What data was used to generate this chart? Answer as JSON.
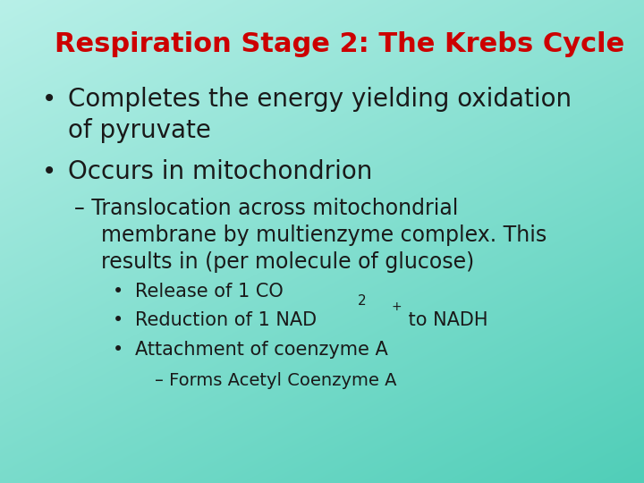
{
  "title": "Respiration Stage 2: The Krebs Cycle",
  "title_color": "#cc0000",
  "title_fontsize": 22,
  "bg_color_tl": "#b0f0e4",
  "bg_color_br": "#60d8c0",
  "text_color": "#1a1a1a",
  "bullet1_line1": "Completes the energy yielding oxidation",
  "bullet1_line2": "of pyruvate",
  "bullet2": "Occurs in mitochondrion",
  "sub_line1": "– Translocation across mitochondrial",
  "sub_line2": "    membrane by multienzyme complex. This",
  "sub_line3": "    results in (per molecule of glucose)",
  "sub_sub_bullet1_part1": "Release of 1 CO",
  "sub_sub_bullet1_sub": "2",
  "sub_sub_bullet2_part1": "Reduction of 1 NAD",
  "sub_sub_bullet2_sup": "+",
  "sub_sub_bullet2_part2": " to NADH",
  "sub_sub_bullet3": "Attachment of coenzyme A",
  "sub_sub_sub": "– Forms Acetyl Coenzyme A",
  "bullet_fontsize": 20,
  "sub_fontsize": 17,
  "subsub_fontsize": 15,
  "subsubsub_fontsize": 14
}
